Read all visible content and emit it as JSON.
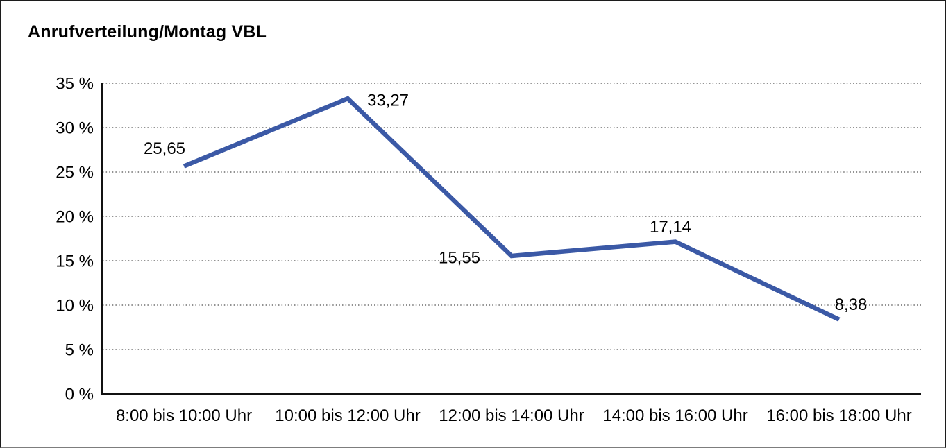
{
  "title": "Anrufverteilung/Montag VBL",
  "chart_data": {
    "type": "line",
    "title": "Anrufverteilung/Montag VBL",
    "categories": [
      "8:00 bis 10:00 Uhr",
      "10:00 bis 12:00 Uhr",
      "12:00 bis 14:00 Uhr",
      "14:00 bis 16:00 Uhr",
      "16:00 bis 18:00 Uhr"
    ],
    "values": [
      25.65,
      33.27,
      15.55,
      17.14,
      8.38
    ],
    "point_labels": [
      "25,65",
      "33,27",
      "15,55",
      "17,14",
      "8,38"
    ],
    "y_tick_labels": [
      "0 %",
      "5 %",
      "10 %",
      "15 %",
      "20 %",
      "25 %",
      "30 %",
      "35 %"
    ],
    "ylim": [
      0,
      35
    ],
    "ytick_step": 5,
    "xlabel": "",
    "ylabel": "",
    "grid": "horizontal-dotted",
    "legend": "none",
    "line_color": "#3B59A6",
    "grid_color": "#6e6e6e",
    "axis_color": "#111111",
    "text_color": "#000000",
    "background": "#ffffff"
  }
}
